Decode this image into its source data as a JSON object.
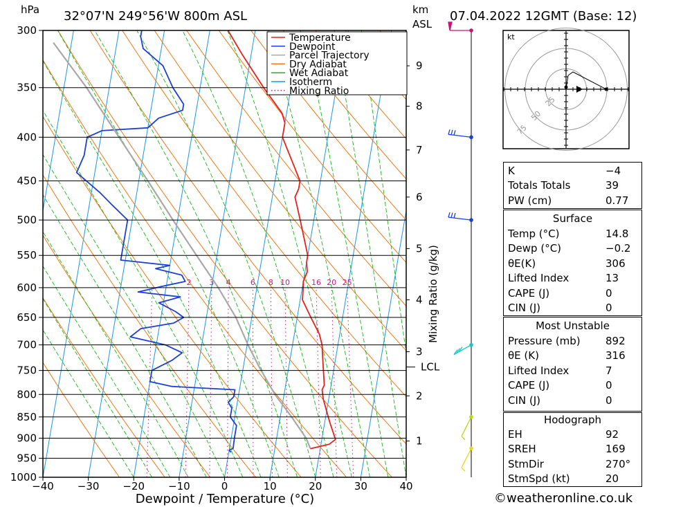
{
  "header": {
    "hpa_label": "hPa",
    "location": "32°07'N  249°56'W  800m  ASL",
    "km_label": "km",
    "asl_label": "ASL",
    "datetime": "07.04.2022  12GMT  (Base: 12)"
  },
  "chart_data": {
    "type": "line",
    "subtype": "skew-T log-P diagram",
    "xlabel": "Dewpoint / Temperature (°C)",
    "ylabel": "hPa",
    "xlim": [
      -40,
      40
    ],
    "ylim": [
      1000,
      300
    ],
    "x_ticks": [
      "−40",
      "−30",
      "−20",
      "−10",
      "0",
      "10",
      "20",
      "30",
      "40"
    ],
    "pressure_levels": [
      300,
      350,
      400,
      450,
      500,
      550,
      600,
      650,
      700,
      750,
      800,
      850,
      900,
      950,
      1000
    ],
    "km_ticks": [
      {
        "km": "9",
        "p": 330
      },
      {
        "km": "8",
        "p": 368
      },
      {
        "km": "7",
        "p": 414
      },
      {
        "km": "6",
        "p": 470
      },
      {
        "km": "5",
        "p": 540
      },
      {
        "km": "4",
        "p": 620
      },
      {
        "km": "3",
        "p": 713
      },
      {
        "km": "2",
        "p": 803
      },
      {
        "km": "1",
        "p": 907
      }
    ],
    "lcl": {
      "label": "LCL",
      "p": 743
    },
    "mixing_ratio_axis_label": "Mixing Ratio (g/kg)",
    "mixing_ratio_labels": [
      "2",
      "3",
      "4",
      "6",
      "8",
      "10",
      "16",
      "20",
      "25"
    ],
    "legend": [
      {
        "name": "Temperature",
        "color": "#e8201c",
        "style": "solid"
      },
      {
        "name": "Dewpoint",
        "color": "#1c3fd8",
        "style": "solid"
      },
      {
        "name": "Parcel Trajectory",
        "color": "#a8a8a8",
        "style": "solid"
      },
      {
        "name": "Dry Adiabat",
        "color": "#f07818",
        "style": "solid"
      },
      {
        "name": "Wet Adiabat",
        "color": "#18b818",
        "style": "solid"
      },
      {
        "name": "Isotherm",
        "color": "#1898e8",
        "style": "solid"
      },
      {
        "name": "Mixing Ratio",
        "color": "#d01890",
        "style": "dotted"
      }
    ],
    "legend_position": "top-right",
    "series": [
      {
        "name": "Temperature",
        "points": [
          [
            926,
            17.8
          ],
          [
            915,
            21.8
          ],
          [
            903,
            23.0
          ],
          [
            860,
            21.0
          ],
          [
            810,
            18.8
          ],
          [
            790,
            18.2
          ],
          [
            780,
            18.5
          ],
          [
            720,
            17.0
          ],
          [
            700,
            16.5
          ],
          [
            680,
            15.5
          ],
          [
            650,
            13.0
          ],
          [
            620,
            10.5
          ],
          [
            600,
            10.2
          ],
          [
            590,
            10.0
          ],
          [
            575,
            10.5
          ],
          [
            560,
            10.0
          ],
          [
            550,
            10.0
          ],
          [
            500,
            7.0
          ],
          [
            470,
            5.0
          ],
          [
            460,
            5.5
          ],
          [
            450,
            5.5
          ],
          [
            400,
            0.0
          ],
          [
            385,
            0.0
          ],
          [
            375,
            -1.0
          ],
          [
            350,
            -6.0
          ],
          [
            320,
            -12.0
          ],
          [
            300,
            -16.0
          ]
        ]
      },
      {
        "name": "Dewpoint",
        "points": [
          [
            935,
            0.5
          ],
          [
            930,
            0.0
          ],
          [
            925,
            0.8
          ],
          [
            900,
            0.7
          ],
          [
            870,
            0.7
          ],
          [
            850,
            -1.0
          ],
          [
            830,
            -1.0
          ],
          [
            817,
            -2.0
          ],
          [
            805,
            -1.0
          ],
          [
            790,
            -1.0
          ],
          [
            783,
            -15.0
          ],
          [
            773,
            -20.0
          ],
          [
            750,
            -20.0
          ],
          [
            730,
            -16.0
          ],
          [
            715,
            -14.0
          ],
          [
            700,
            -18.0
          ],
          [
            685,
            -26.0
          ],
          [
            670,
            -24.0
          ],
          [
            660,
            -17.0
          ],
          [
            650,
            -15.0
          ],
          [
            640,
            -17.0
          ],
          [
            625,
            -21.0
          ],
          [
            615,
            -16.5
          ],
          [
            607,
            -26.0
          ],
          [
            598,
            -21.0
          ],
          [
            590,
            -16.0
          ],
          [
            580,
            -17.0
          ],
          [
            570,
            -23.0
          ],
          [
            565,
            -20.0
          ],
          [
            557,
            -31.0
          ],
          [
            545,
            -31.0
          ],
          [
            500,
            -31.0
          ],
          [
            480,
            -35.0
          ],
          [
            465,
            -38.0
          ],
          [
            440,
            -44.0
          ],
          [
            420,
            -43.0
          ],
          [
            400,
            -43.0
          ],
          [
            393,
            -40.0
          ],
          [
            390,
            -30.0
          ],
          [
            380,
            -28.0
          ],
          [
            372,
            -23.0
          ],
          [
            366,
            -23.0
          ],
          [
            350,
            -26.0
          ],
          [
            330,
            -29.0
          ],
          [
            315,
            -34.0
          ],
          [
            305,
            -35.0
          ],
          [
            300,
            -35.0
          ]
        ]
      },
      {
        "name": "Parcel Trajectory",
        "points": [
          [
            925,
            17.8
          ],
          [
            900,
            16.5
          ],
          [
            850,
            12.5
          ],
          [
            800,
            8.0
          ],
          [
            743,
            3.5
          ],
          [
            700,
            0.2
          ],
          [
            650,
            -3.5
          ],
          [
            600,
            -8.5
          ],
          [
            550,
            -14.5
          ],
          [
            500,
            -21.0
          ],
          [
            450,
            -28.0
          ],
          [
            400,
            -36.0
          ],
          [
            350,
            -45.0
          ],
          [
            310,
            -54.0
          ]
        ]
      }
    ]
  },
  "wind_barbs": [
    {
      "p": 300,
      "color": "#c81478",
      "speed_kt": "",
      "dir": ""
    },
    {
      "p": 400,
      "color": "#1c3fd8",
      "speed_kt": "",
      "dir": ""
    },
    {
      "p": 500,
      "color": "#1c3fd8",
      "speed_kt": "",
      "dir": ""
    },
    {
      "p": 700,
      "color": "#18c8c8",
      "speed_kt": "",
      "dir": ""
    },
    {
      "p": 850,
      "color": "#b8d818",
      "speed_kt": "",
      "dir": ""
    },
    {
      "p": 925,
      "color": "#e8d818",
      "speed_kt": "",
      "dir": ""
    }
  ],
  "hodograph": {
    "unit_label": "kt",
    "ring_labels": [
      "25",
      "50",
      "75"
    ]
  },
  "indices": {
    "k_label": "K",
    "k_value": "−4",
    "tt_label": "Totals Totals",
    "tt_value": "39",
    "pw_label": "PW (cm)",
    "pw_value": "0.77"
  },
  "surface": {
    "title": "Surface",
    "temp_label": "Temp (°C)",
    "temp_value": "14.8",
    "dewp_label": "Dewp (°C)",
    "dewp_value": "−0.2",
    "thetae_label": "θE(K)",
    "thetae_value": "306",
    "li_label": "Lifted Index",
    "li_value": "13",
    "cape_label": "CAPE (J)",
    "cape_value": "0",
    "cin_label": "CIN (J)",
    "cin_value": "0"
  },
  "most_unstable": {
    "title": "Most Unstable",
    "pressure_label": "Pressure (mb)",
    "pressure_value": "892",
    "thetae_label": "θE (K)",
    "thetae_value": "316",
    "li_label": "Lifted Index",
    "li_value": "7",
    "cape_label": "CAPE (J)",
    "cape_value": "0",
    "cin_label": "CIN (J)",
    "cin_value": "0"
  },
  "hodograph_table": {
    "title": "Hodograph",
    "eh_label": "EH",
    "eh_value": "92",
    "sreh_label": "SREH",
    "sreh_value": "169",
    "stmdir_label": "StmDir",
    "stmdir_value": "270°",
    "stmspd_label": "StmSpd (kt)",
    "stmspd_value": "20"
  },
  "footer": {
    "credit": "©weatheronline.co.uk"
  }
}
